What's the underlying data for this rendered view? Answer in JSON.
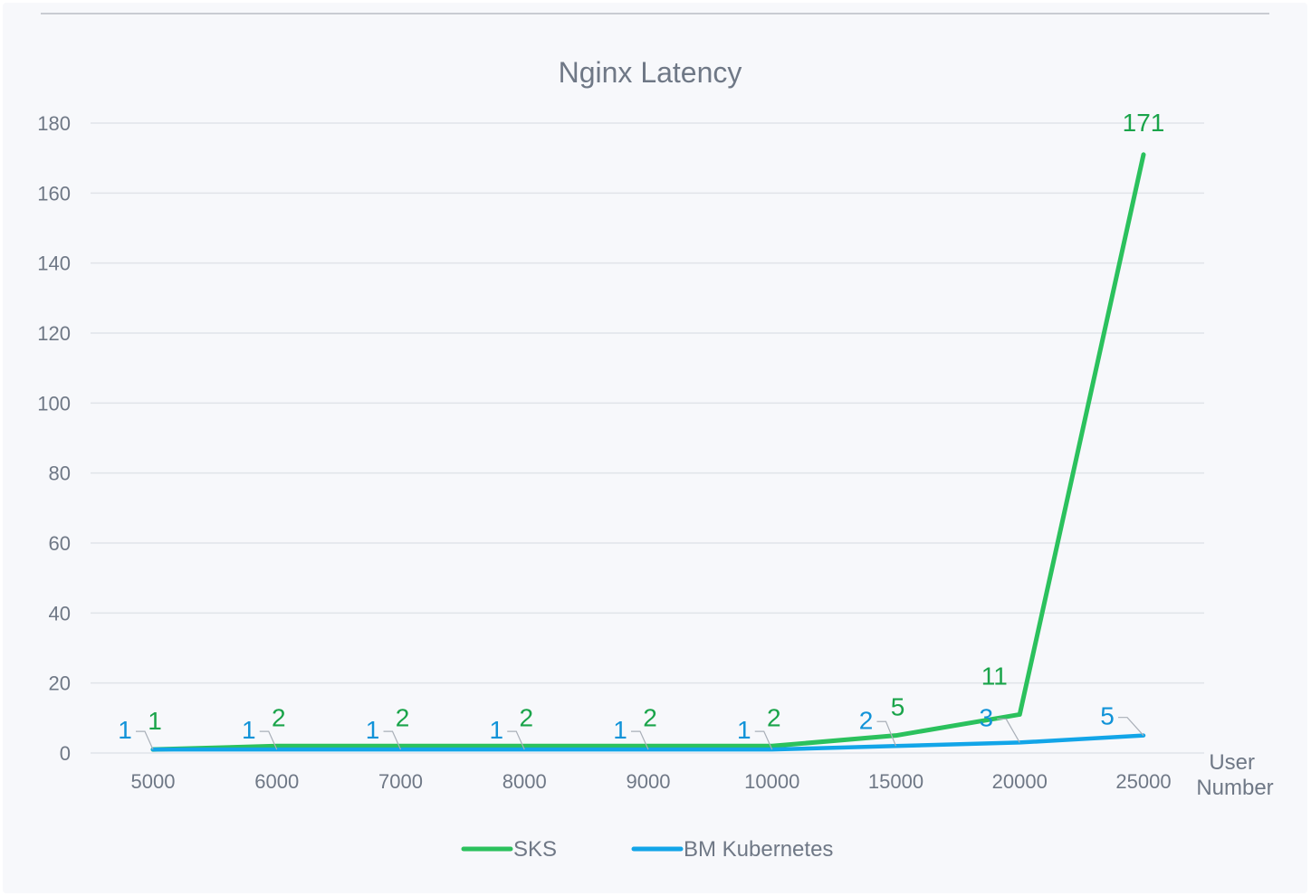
{
  "chart_data": {
    "type": "line",
    "title": "Nginx Latency",
    "xlabel": "User\nNumber",
    "ylabel": "",
    "categories": [
      "5000",
      "6000",
      "7000",
      "8000",
      "9000",
      "10000",
      "15000",
      "20000",
      "25000"
    ],
    "ylim": [
      0,
      180
    ],
    "yticks": [
      0,
      20,
      40,
      60,
      80,
      100,
      120,
      140,
      160,
      180
    ],
    "grid": true,
    "legend": "bottom",
    "series": [
      {
        "name": "SKS",
        "color": "#2bc15d",
        "label_color": "#1aa44a",
        "values": [
          1,
          2,
          2,
          2,
          2,
          2,
          5,
          11,
          171
        ]
      },
      {
        "name": "BM Kubernetes",
        "color": "#12a5e8",
        "label_color": "#1193d8",
        "values": [
          1,
          1,
          1,
          1,
          1,
          1,
          2,
          3,
          5
        ]
      }
    ]
  }
}
